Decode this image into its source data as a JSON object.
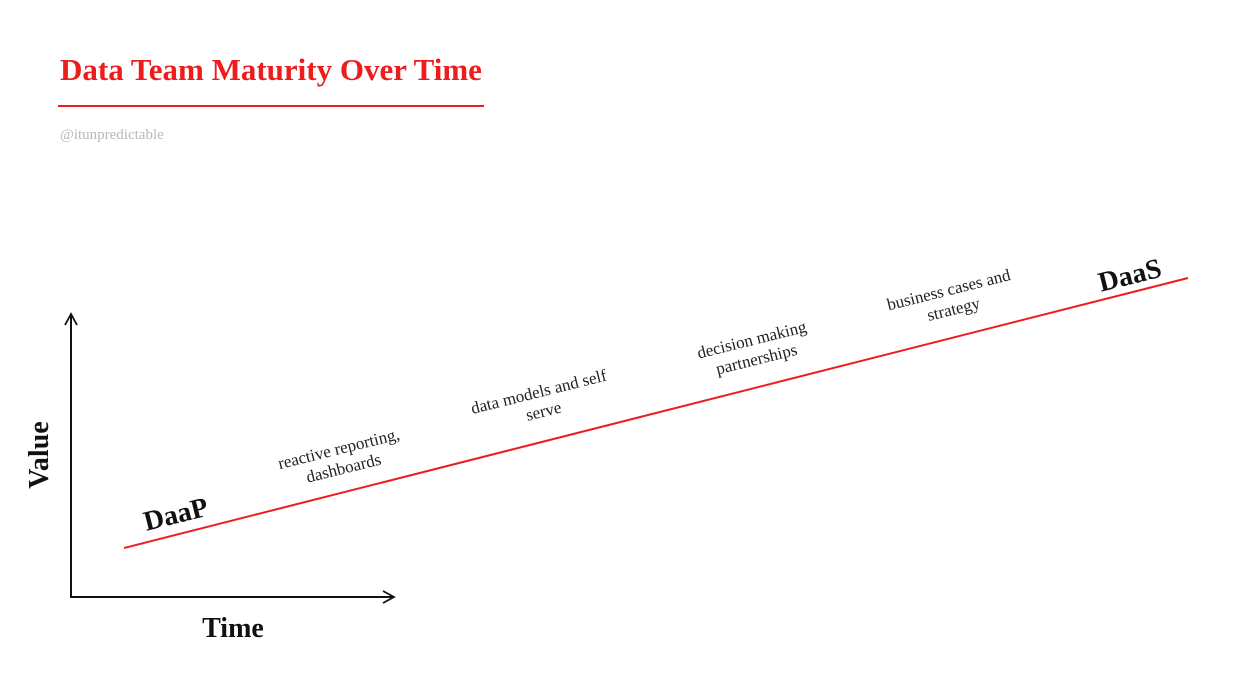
{
  "header": {
    "title": "Data Team Maturity Over Time",
    "handle": "@itunpredictable"
  },
  "axes": {
    "y_label": "Value",
    "x_label": "Time"
  },
  "trend": {
    "start_label": "DaaP",
    "end_label": "DaaS"
  },
  "stages": [
    {
      "line1": "reactive reporting,",
      "line2": "dashboards"
    },
    {
      "line1": "data models and self",
      "line2": "serve"
    },
    {
      "line1": "decision making",
      "line2": "partnerships"
    },
    {
      "line1": "business cases and",
      "line2": "strategy"
    }
  ],
  "colors": {
    "accent": "#ee1c1c",
    "ink": "#111111",
    "muted": "#b9b9b9"
  }
}
